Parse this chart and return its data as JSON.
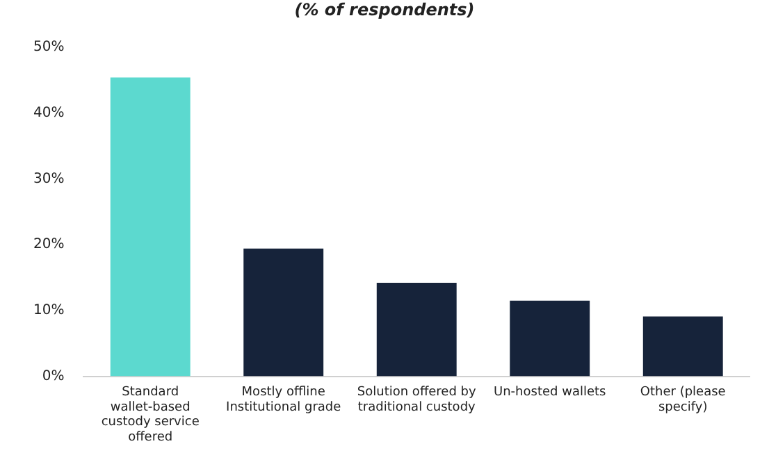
{
  "chart_data": {
    "type": "bar",
    "subtitle": "(% of respondents)",
    "categories": [
      "Standard wallet-based custody service offered",
      "Mostly offline Institutional grade",
      "Solution offered by traditional custody",
      "Un-hosted wallets",
      "Other (please specify)"
    ],
    "values": [
      45.4,
      19.4,
      14.2,
      11.5,
      9.1
    ],
    "colors": [
      "#5cd9cf",
      "#16233a",
      "#16233a",
      "#16233a",
      "#16233a"
    ],
    "ylim": [
      0,
      50
    ],
    "yticks": [
      {
        "value": 0,
        "label": "0%"
      },
      {
        "value": 10,
        "label": "10%"
      },
      {
        "value": 20,
        "label": "20%"
      },
      {
        "value": 30,
        "label": "30%"
      },
      {
        "value": 40,
        "label": "40%"
      },
      {
        "value": 50,
        "label": "50%"
      }
    ],
    "grid": false,
    "legend": false
  }
}
